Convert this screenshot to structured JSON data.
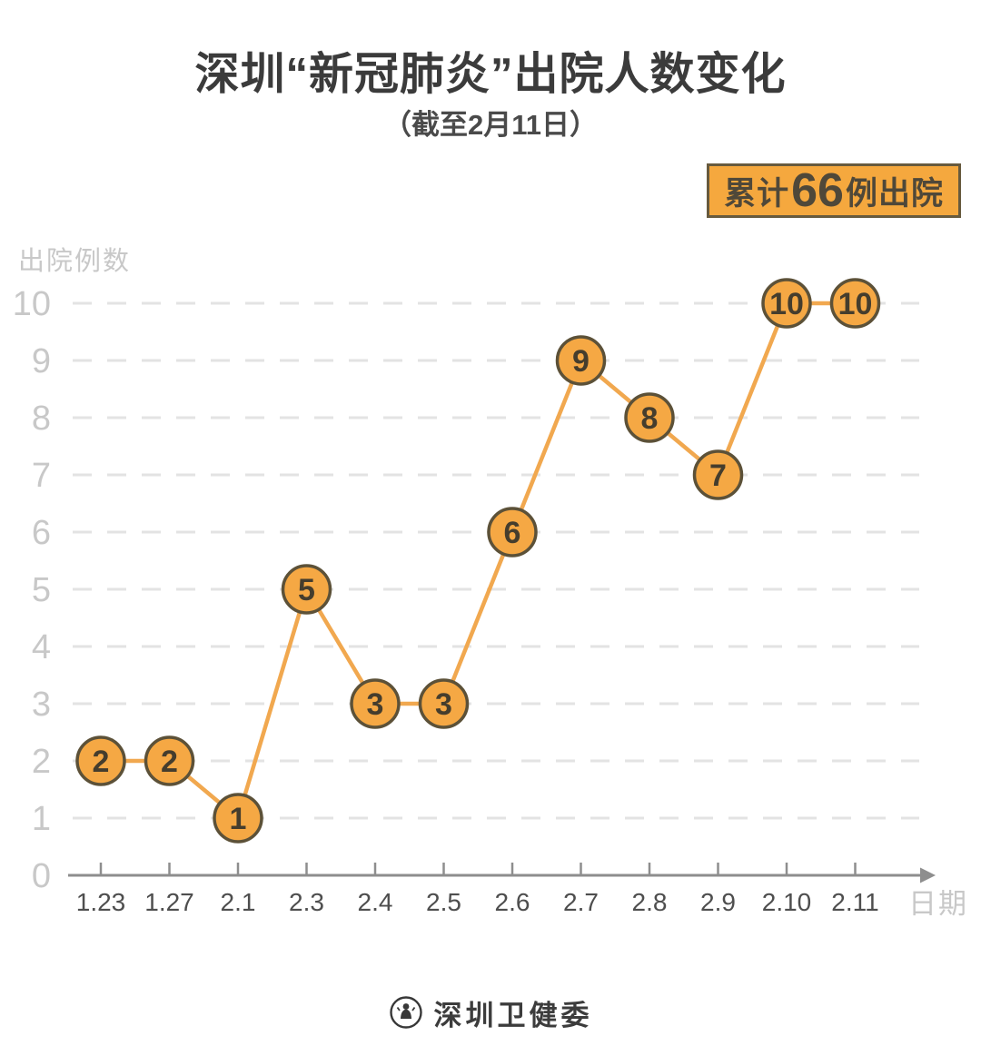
{
  "header": {
    "title": "深圳“新冠肺炎”出院人数变化",
    "subtitle": "（截至2月11日）"
  },
  "badge": {
    "prefix": "累计",
    "number": "66",
    "suffix": "例出院"
  },
  "chart_data": {
    "type": "line",
    "title": "深圳“新冠肺炎”出院人数变化",
    "subtitle": "（截至2月11日）",
    "categories": [
      "1.23",
      "1.27",
      "2.1",
      "2.3",
      "2.4",
      "2.5",
      "2.6",
      "2.7",
      "2.8",
      "2.9",
      "2.10",
      "2.11"
    ],
    "values": [
      2,
      2,
      1,
      5,
      3,
      3,
      6,
      9,
      8,
      7,
      10,
      10
    ],
    "xlabel": "日期",
    "ylabel": "出院例数",
    "ylim": [
      0,
      10
    ],
    "yticks": [
      0,
      1,
      2,
      3,
      4,
      5,
      6,
      7,
      8,
      9,
      10
    ],
    "grid": "horizontal-dashed",
    "legend": "none",
    "point_labels": "value shown inside circular marker at each point",
    "annotation": "累计66例出院"
  },
  "colors": {
    "marker_fill": "#F5A844",
    "marker_border": "#5C5138",
    "marker_value_text": "#453D2D",
    "line": "#F1A84F",
    "badge_bg": "#F5A83E",
    "badge_border": "#675A3E",
    "badge_text": "#4F4839",
    "grid": "#E3E3E3",
    "axis": "#8E8E8E",
    "muted_label": "#C8C8C8",
    "x_tick_text": "#4E4E4E",
    "title_text": "#3B3B3B"
  },
  "footer": {
    "logo_text": "深圳卫健委"
  }
}
